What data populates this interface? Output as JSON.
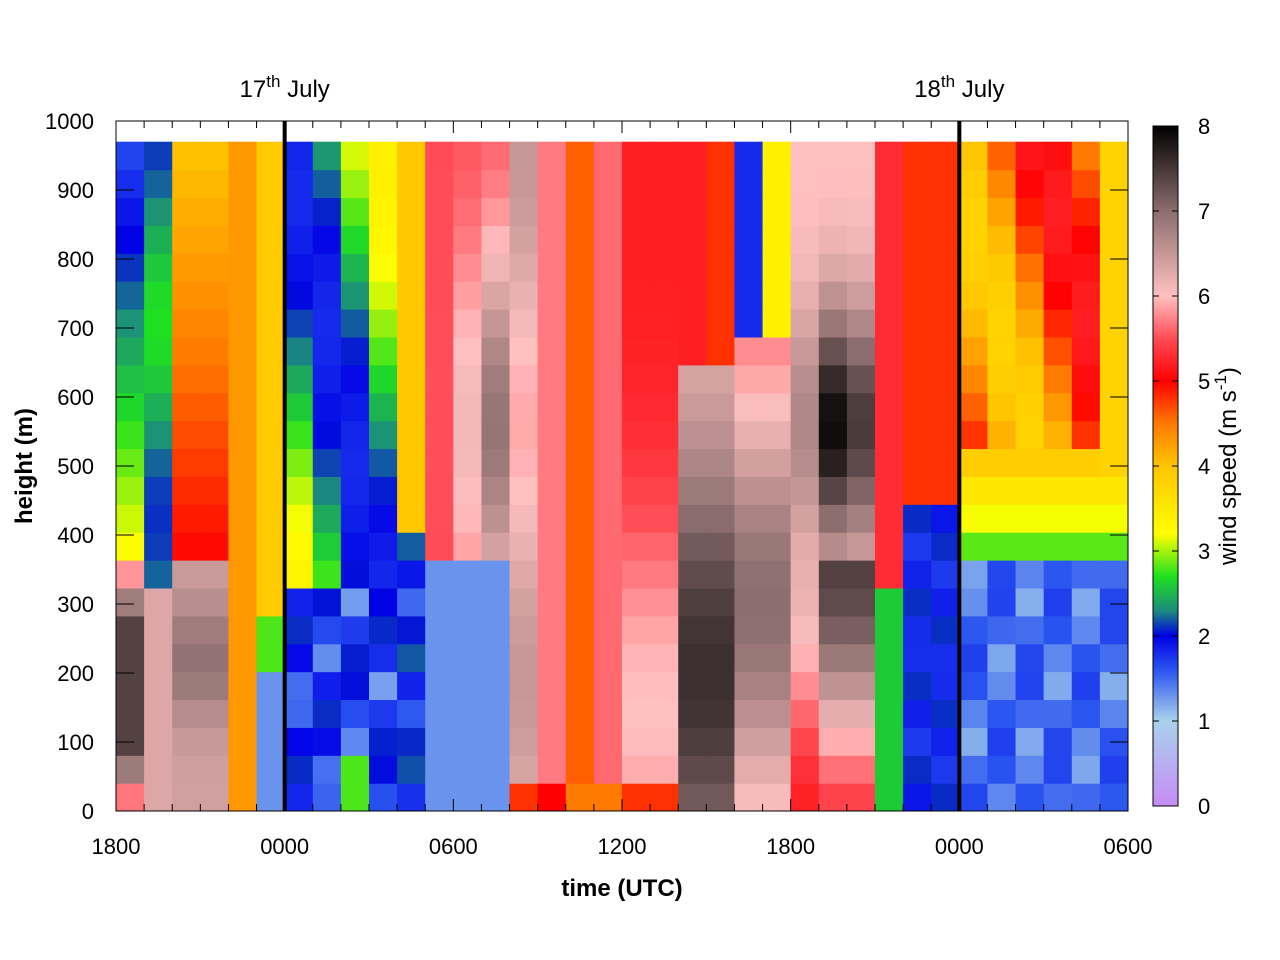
{
  "chart_data": {
    "type": "heatmap",
    "title": "",
    "xlabel": "time (UTC)",
    "ylabel": "height (m)",
    "colorbar_label_prefix": "wind speed (m s",
    "colorbar_label_sup": "-1",
    "colorbar_label_suffix": ")",
    "x_range_hours": [
      0,
      36
    ],
    "x_ticks": [
      {
        "hour": 0,
        "label": "1800"
      },
      {
        "hour": 6,
        "label": "0000"
      },
      {
        "hour": 12,
        "label": "0600"
      },
      {
        "hour": 18,
        "label": "1200"
      },
      {
        "hour": 24,
        "label": "1800"
      },
      {
        "hour": 30,
        "label": "0000"
      },
      {
        "hour": 36,
        "label": "0600"
      }
    ],
    "ylim": [
      0,
      1000
    ],
    "y_ticks": [
      0,
      100,
      200,
      300,
      400,
      500,
      600,
      700,
      800,
      900,
      1000
    ],
    "data_top_height": 970,
    "colorbar_range": [
      0,
      8
    ],
    "colorbar_ticks": [
      0,
      1,
      2,
      3,
      4,
      5,
      6,
      7,
      8
    ],
    "day_markers": [
      {
        "hour": 6,
        "label": "17",
        "sup": "th",
        "suffix": " July"
      },
      {
        "hour": 30,
        "label": "18",
        "sup": "th",
        "suffix": " July"
      }
    ],
    "colormap": [
      {
        "v": 0,
        "color": "#c68cf5"
      },
      {
        "v": 1,
        "color": "#a9d1ec"
      },
      {
        "v": 1.6,
        "color": "#2a55f0"
      },
      {
        "v": 2,
        "color": "#0000e6"
      },
      {
        "v": 2.3,
        "color": "#1c8c7c"
      },
      {
        "v": 2.7,
        "color": "#1fe01f"
      },
      {
        "v": 3.2,
        "color": "#ffff00"
      },
      {
        "v": 4,
        "color": "#ffc400"
      },
      {
        "v": 4.5,
        "color": "#ff7a00"
      },
      {
        "v": 5,
        "color": "#ff0000"
      },
      {
        "v": 5.5,
        "color": "#ff4b55"
      },
      {
        "v": 6,
        "color": "#ffc0c0"
      },
      {
        "v": 7,
        "color": "#8c6e6e"
      },
      {
        "v": 8,
        "color": "#000000"
      }
    ],
    "z_model": {
      "description": "wind speed (m s-1) on a 36-column x 24-row grid, hours 0-36, heights 0-970 m",
      "columns": 36,
      "rows": 24
    }
  }
}
